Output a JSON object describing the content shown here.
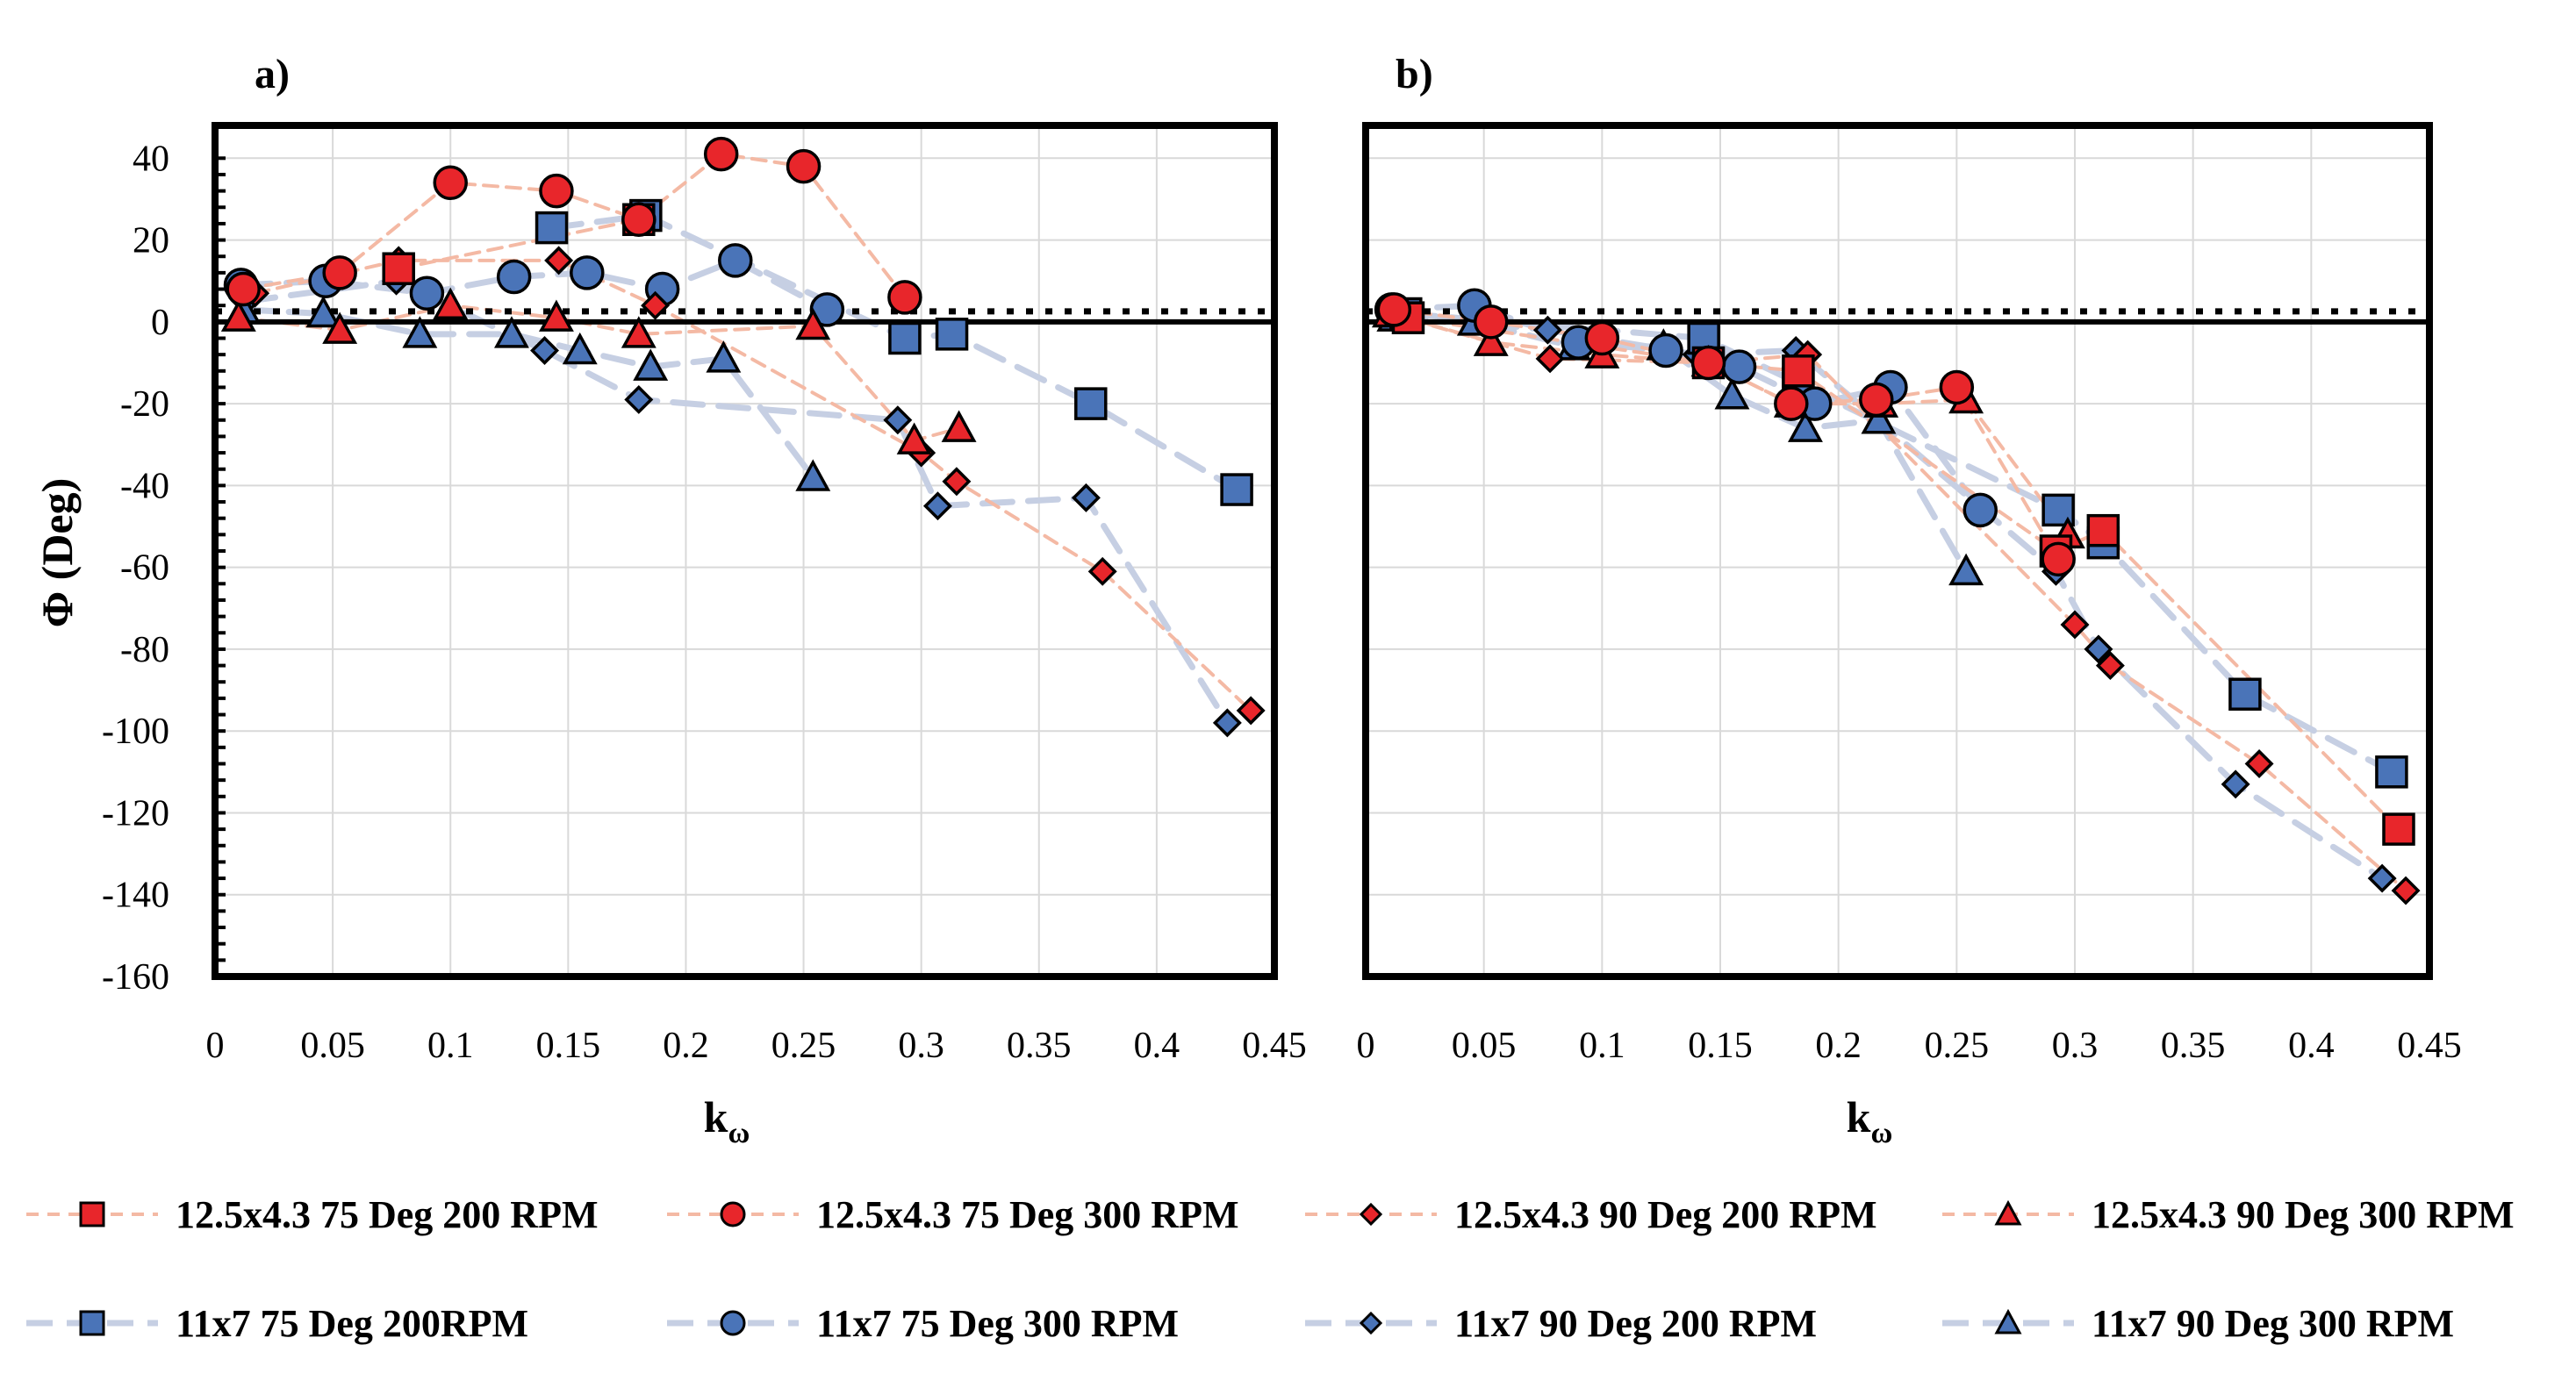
{
  "chart_data": {
    "type": "scatter",
    "xlabel": "k",
    "xlabel_subscript": "ω",
    "ylabel": "Φ (Deg)",
    "xlim": [
      0,
      0.45
    ],
    "ylim": [
      -160,
      40
    ],
    "x_ticks": [
      "0",
      "0.05",
      "0.1",
      "0.15",
      "0.2",
      "0.25",
      "0.3",
      "0.35",
      "0.4",
      "0.45"
    ],
    "y_ticks": [
      "40",
      "20",
      "0",
      "-20",
      "-40",
      "-60",
      "-80",
      "-100",
      "-120",
      "-140",
      "-160"
    ],
    "colors": {
      "red": "#e8262b",
      "blue": "#4a74b8",
      "red_line": "#f4b9a4",
      "blue_line": "#c6cfe3"
    },
    "legend": [
      {
        "label": "12.5x4.3 75 Deg 200 RPM",
        "marker": "square",
        "color": "red"
      },
      {
        "label": "12.5x4.3 75 Deg 300 RPM",
        "marker": "circle",
        "color": "red"
      },
      {
        "label": "12.5x4.3 90 Deg 200 RPM",
        "marker": "diamond",
        "color": "red"
      },
      {
        "label": "12.5x4.3 90 Deg 300 RPM",
        "marker": "triangle",
        "color": "red"
      },
      {
        "label": "11x7 75 Deg 200RPM",
        "marker": "square",
        "color": "blue"
      },
      {
        "label": "11x7 75 Deg 300 RPM",
        "marker": "circle",
        "color": "blue"
      },
      {
        "label": "11x7 90 Deg 200 RPM",
        "marker": "diamond",
        "color": "blue"
      },
      {
        "label": "11x7 90 Deg 300 RPM",
        "marker": "triangle",
        "color": "blue"
      }
    ],
    "panels": [
      {
        "title": "a)",
        "series": [
          {
            "name": "11x7 90 Deg 200 RPM",
            "marker": "diamond",
            "color": "blue",
            "points": [
              [
                0.013,
                5
              ],
              [
                0.077,
                10
              ],
              [
                0.14,
                -7
              ],
              [
                0.18,
                -19
              ],
              [
                0.29,
                -24
              ],
              [
                0.307,
                -45
              ],
              [
                0.37,
                -43
              ],
              [
                0.43,
                -98
              ]
            ]
          },
          {
            "name": "11x7 90 Deg 300 RPM",
            "marker": "triangle",
            "color": "blue",
            "points": [
              [
                0.012,
                3
              ],
              [
                0.046,
                2
              ],
              [
                0.087,
                -3
              ],
              [
                0.126,
                -3
              ],
              [
                0.155,
                -7
              ],
              [
                0.185,
                -11
              ],
              [
                0.216,
                -9
              ],
              [
                0.254,
                -38
              ]
            ]
          },
          {
            "name": "11x7 75 Deg 200RPM",
            "marker": "square",
            "color": "blue",
            "points": [
              [
                0.143,
                23
              ],
              [
                0.183,
                26
              ],
              [
                0.293,
                -4
              ],
              [
                0.313,
                -3
              ],
              [
                0.372,
                -20
              ],
              [
                0.434,
                -41
              ]
            ]
          },
          {
            "name": "11x7 75 Deg 300 RPM",
            "marker": "circle",
            "color": "blue",
            "points": [
              [
                0.011,
                9
              ],
              [
                0.047,
                10
              ],
              [
                0.09,
                7
              ],
              [
                0.127,
                11
              ],
              [
                0.158,
                12
              ],
              [
                0.19,
                8
              ],
              [
                0.221,
                15
              ],
              [
                0.26,
                3
              ]
            ]
          },
          {
            "name": "12.5x4.3 90 Deg 200 RPM",
            "marker": "diamond",
            "color": "red",
            "points": [
              [
                0.017,
                7
              ],
              [
                0.078,
                15
              ],
              [
                0.146,
                15
              ],
              [
                0.187,
                4
              ],
              [
                0.3,
                -32
              ],
              [
                0.315,
                -39
              ],
              [
                0.377,
                -61
              ],
              [
                0.44,
                -95
              ]
            ]
          },
          {
            "name": "12.5x4.3 90 Deg 300 RPM",
            "marker": "triangle",
            "color": "red",
            "points": [
              [
                0.01,
                1
              ],
              [
                0.053,
                -2
              ],
              [
                0.1,
                4
              ],
              [
                0.145,
                1
              ],
              [
                0.18,
                -3
              ],
              [
                0.254,
                -1
              ],
              [
                0.297,
                -29
              ],
              [
                0.316,
                -26
              ]
            ]
          },
          {
            "name": "12.5x4.3 75 Deg 200 RPM",
            "marker": "square",
            "color": "red",
            "points": [
              [
                0.078,
                13
              ],
              [
                0.18,
                25
              ]
            ]
          },
          {
            "name": "12.5x4.3 75 Deg 300 RPM",
            "marker": "circle",
            "color": "red",
            "points": [
              [
                0.012,
                8
              ],
              [
                0.053,
                12
              ],
              [
                0.1,
                34
              ],
              [
                0.145,
                32
              ],
              [
                0.18,
                25
              ],
              [
                0.215,
                41
              ],
              [
                0.25,
                38
              ],
              [
                0.293,
                6
              ]
            ]
          }
        ]
      },
      {
        "title": "b)",
        "series": [
          {
            "name": "11x7 90 Deg 200 RPM",
            "marker": "diamond",
            "color": "blue",
            "points": [
              [
                0.013,
                2
              ],
              [
                0.077,
                -2
              ],
              [
                0.14,
                -8
              ],
              [
                0.182,
                -7
              ],
              [
                0.292,
                -61
              ],
              [
                0.31,
                -80
              ],
              [
                0.368,
                -113
              ],
              [
                0.43,
                -136
              ]
            ]
          },
          {
            "name": "11x7 90 Deg 300 RPM",
            "marker": "triangle",
            "color": "blue",
            "points": [
              [
                0.012,
                1
              ],
              [
                0.046,
                0
              ],
              [
                0.088,
                -6
              ],
              [
                0.126,
                -6
              ],
              [
                0.155,
                -18
              ],
              [
                0.186,
                -26
              ],
              [
                0.217,
                -24
              ],
              [
                0.254,
                -61
              ]
            ]
          },
          {
            "name": "11x7 75 Deg 200RPM",
            "marker": "square",
            "color": "blue",
            "points": [
              [
                0.017,
                2
              ],
              [
                0.143,
                -4
              ],
              [
                0.183,
                -15
              ],
              [
                0.293,
                -46
              ],
              [
                0.312,
                -54
              ],
              [
                0.372,
                -91
              ],
              [
                0.434,
                -110
              ]
            ]
          },
          {
            "name": "11x7 75 Deg 300 RPM",
            "marker": "circle",
            "color": "blue",
            "points": [
              [
                0.011,
                3
              ],
              [
                0.046,
                4
              ],
              [
                0.09,
                -5
              ],
              [
                0.127,
                -7
              ],
              [
                0.158,
                -11
              ],
              [
                0.19,
                -20
              ],
              [
                0.222,
                -16
              ],
              [
                0.26,
                -46
              ]
            ]
          },
          {
            "name": "12.5x4.3 90 Deg 200 RPM",
            "marker": "diamond",
            "color": "red",
            "points": [
              [
                0.017,
                1
              ],
              [
                0.078,
                -9
              ],
              [
                0.146,
                -10
              ],
              [
                0.187,
                -8
              ],
              [
                0.3,
                -74
              ],
              [
                0.315,
                -84
              ],
              [
                0.378,
                -108
              ],
              [
                0.44,
                -139
              ]
            ]
          },
          {
            "name": "12.5x4.3 90 Deg 300 RPM",
            "marker": "triangle",
            "color": "red",
            "points": [
              [
                0.01,
                2
              ],
              [
                0.053,
                -5
              ],
              [
                0.1,
                -8
              ],
              [
                0.145,
                -10
              ],
              [
                0.18,
                -20
              ],
              [
                0.218,
                -20
              ],
              [
                0.254,
                -19
              ],
              [
                0.297,
                -52
              ]
            ]
          },
          {
            "name": "12.5x4.3 75 Deg 200 RPM",
            "marker": "square",
            "color": "red",
            "points": [
              [
                0.018,
                1
              ],
              [
                0.145,
                -10
              ],
              [
                0.183,
                -12
              ],
              [
                0.292,
                -56
              ],
              [
                0.312,
                -51
              ],
              [
                0.437,
                -124
              ]
            ]
          },
          {
            "name": "12.5x4.3 75 Deg 300 RPM",
            "marker": "circle",
            "color": "red",
            "points": [
              [
                0.012,
                3
              ],
              [
                0.053,
                0
              ],
              [
                0.1,
                -4
              ],
              [
                0.145,
                -10
              ],
              [
                0.18,
                -20
              ],
              [
                0.216,
                -19
              ],
              [
                0.25,
                -16
              ],
              [
                0.293,
                -58
              ]
            ]
          }
        ]
      }
    ]
  }
}
